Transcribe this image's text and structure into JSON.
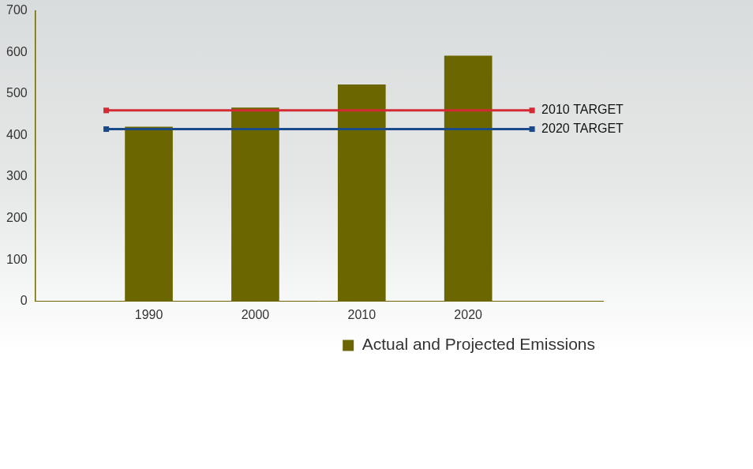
{
  "chart_data": {
    "type": "bar",
    "x": [
      1990,
      2000,
      2010,
      2020
    ],
    "xlim": [
      1986,
      2026
    ],
    "xticks": [
      1990,
      2000,
      2010,
      2020
    ],
    "ylim": [
      0,
      700
    ],
    "yticks": [
      0,
      100,
      200,
      300,
      400,
      500,
      600,
      700
    ],
    "series": [
      {
        "name": "Actual and Projected Emissions",
        "color": "#6b6600",
        "values": [
          420,
          466,
          522,
          591
        ]
      }
    ],
    "targets": [
      {
        "name": "2010 TARGET",
        "value": 460,
        "color": "#d42a34",
        "marker": "square"
      },
      {
        "name": "2020 TARGET",
        "value": 415,
        "color": "#1a4a8a",
        "marker": "square"
      }
    ],
    "legend": "lower right",
    "grid": false
  }
}
